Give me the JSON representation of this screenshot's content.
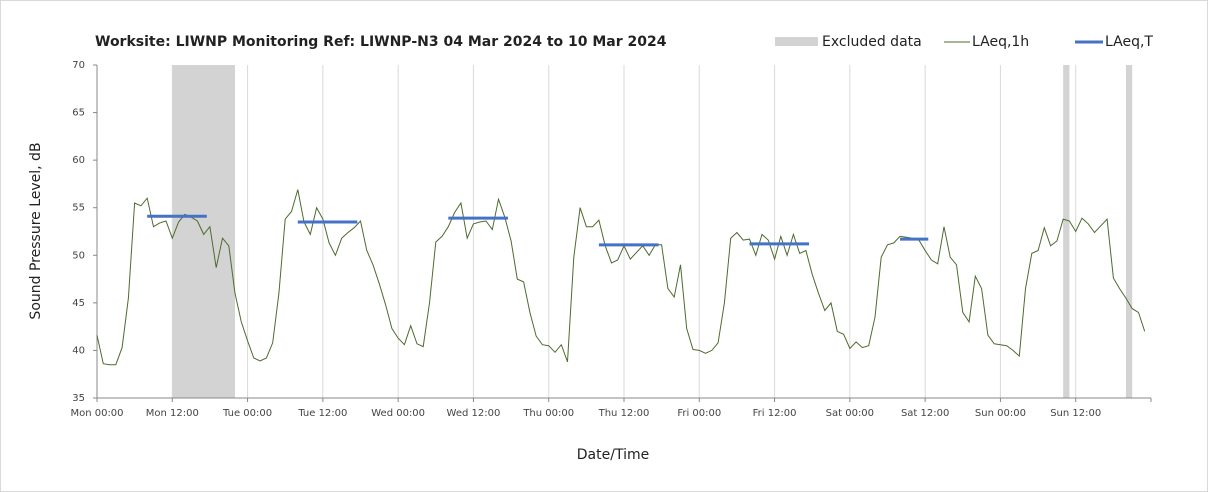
{
  "chart_data": {
    "type": "line",
    "title": "Worksite: LIWNP   Monitoring Ref: LIWNP-N3     04 Mar 2024 to 10 Mar 2024",
    "xlabel": "Date/Time",
    "ylabel": "Sound Pressure Level, dB",
    "xlim": [
      0,
      168
    ],
    "xticks": [
      {
        "value": 0,
        "label": "Mon 00:00"
      },
      {
        "value": 12,
        "label": "Mon 12:00"
      },
      {
        "value": 24,
        "label": "Tue 00:00"
      },
      {
        "value": 36,
        "label": "Tue 12:00"
      },
      {
        "value": 48,
        "label": "Wed 00:00"
      },
      {
        "value": 60,
        "label": "Wed 12:00"
      },
      {
        "value": 72,
        "label": "Thu 00:00"
      },
      {
        "value": 84,
        "label": "Thu 12:00"
      },
      {
        "value": 96,
        "label": "Fri 00:00"
      },
      {
        "value": 108,
        "label": "Fri 12:00"
      },
      {
        "value": 120,
        "label": "Sat 00:00"
      },
      {
        "value": 132,
        "label": "Sat 12:00"
      },
      {
        "value": 144,
        "label": "Sun 00:00"
      },
      {
        "value": 156,
        "label": "Sun 12:00"
      }
    ],
    "ylim": [
      35,
      70
    ],
    "yticks": [
      35,
      40,
      45,
      50,
      55,
      60,
      65,
      70
    ],
    "grid": "x",
    "excluded": {
      "name": "Excluded data",
      "color": "#d3d3d3",
      "start": [
        12,
        154,
        164
      ],
      "end": [
        22,
        155,
        165
      ]
    },
    "series": [
      {
        "name": "LAeq,1h",
        "color": "#4e6b2e",
        "x": [
          0,
          1,
          2,
          3,
          4,
          5,
          6,
          7,
          8,
          9,
          10,
          11,
          12,
          13,
          14,
          15,
          16,
          17,
          18,
          19,
          20,
          21,
          22,
          23,
          24,
          25,
          26,
          27,
          28,
          29,
          30,
          31,
          32,
          33,
          34,
          35,
          36,
          37,
          38,
          39,
          40,
          41,
          42,
          43,
          44,
          45,
          46,
          47,
          48,
          49,
          50,
          51,
          52,
          53,
          54,
          55,
          56,
          57,
          58,
          59,
          60,
          61,
          62,
          63,
          64,
          65,
          66,
          67,
          68,
          69,
          70,
          71,
          72,
          73,
          74,
          75,
          76,
          77,
          78,
          79,
          80,
          81,
          82,
          83,
          84,
          85,
          86,
          87,
          88,
          89,
          90,
          91,
          92,
          93,
          94,
          95,
          96,
          97,
          98,
          99,
          100,
          101,
          102,
          103,
          104,
          105,
          106,
          107,
          108,
          109,
          110,
          111,
          112,
          113,
          114,
          115,
          116,
          117,
          118,
          119,
          120,
          121,
          122,
          123,
          124,
          125,
          126,
          127,
          128,
          129,
          130,
          131,
          132,
          133,
          134,
          135,
          136,
          137,
          138,
          139,
          140,
          141,
          142,
          143,
          144,
          145,
          146,
          147,
          148,
          149,
          150,
          151,
          152,
          153,
          154,
          155,
          156,
          157,
          158,
          159,
          160,
          161,
          162,
          163,
          164,
          165,
          166,
          167
        ],
        "values": [
          41.6,
          38.6,
          38.5,
          38.5,
          40.3,
          45.5,
          55.5,
          55.2,
          56.0,
          53.0,
          53.4,
          53.6,
          51.8,
          53.5,
          54.3,
          54.0,
          53.6,
          52.2,
          53.0,
          48.7,
          51.8,
          51.0,
          46.0,
          43.0,
          41.0,
          39.2,
          38.9,
          39.2,
          40.8,
          46.0,
          53.8,
          54.6,
          56.9,
          53.5,
          52.2,
          55.0,
          53.8,
          51.3,
          50.0,
          51.8,
          52.4,
          52.9,
          53.6,
          50.5,
          49.0,
          47.0,
          44.8,
          42.3,
          41.3,
          40.6,
          42.6,
          40.7,
          40.4,
          45.0,
          51.4,
          52.0,
          53.0,
          54.5,
          55.5,
          51.8,
          53.3,
          53.5,
          53.6,
          52.7,
          55.9,
          54.0,
          51.5,
          47.5,
          47.2,
          44.0,
          41.5,
          40.6,
          40.5,
          39.8,
          40.6,
          38.8,
          49.8,
          55.0,
          53.0,
          53.0,
          53.7,
          51.0,
          49.2,
          49.5,
          51.0,
          49.6,
          50.3,
          51.0,
          50.0,
          51.1,
          51.1,
          46.5,
          45.6,
          49.0,
          42.3,
          40.1,
          40.0,
          39.7,
          40.0,
          40.8,
          45.0,
          51.8,
          52.4,
          51.6,
          51.7,
          50.0,
          52.2,
          51.6,
          49.6,
          52.0,
          50.0,
          52.2,
          50.2,
          50.5,
          48.0,
          46.0,
          44.2,
          45.0,
          42.0,
          41.7,
          40.2,
          40.9,
          40.3,
          40.5,
          43.5,
          49.8,
          51.1,
          51.3,
          52.0,
          51.9,
          51.8,
          51.6,
          50.5,
          49.5,
          49.1,
          53.0,
          49.8,
          49.0,
          44.0,
          43.0,
          47.8,
          46.5,
          41.6,
          40.7,
          40.6,
          40.5,
          40.0,
          39.4,
          46.5,
          50.2,
          50.5,
          52.9,
          51.0,
          51.5,
          53.8,
          53.6,
          52.5,
          53.9,
          53.3,
          52.4,
          53.1,
          53.8,
          47.6,
          46.5,
          45.5,
          44.4,
          44.0,
          42.0
        ]
      },
      {
        "name": "LAeq,T",
        "color": "#4472c4",
        "start": [
          8,
          32,
          56,
          80,
          104,
          128
        ],
        "end": [
          17.5,
          41.5,
          65.5,
          89.5,
          113.5,
          132.5
        ],
        "values": [
          54.1,
          53.5,
          53.9,
          51.1,
          51.2,
          51.7
        ]
      }
    ]
  }
}
